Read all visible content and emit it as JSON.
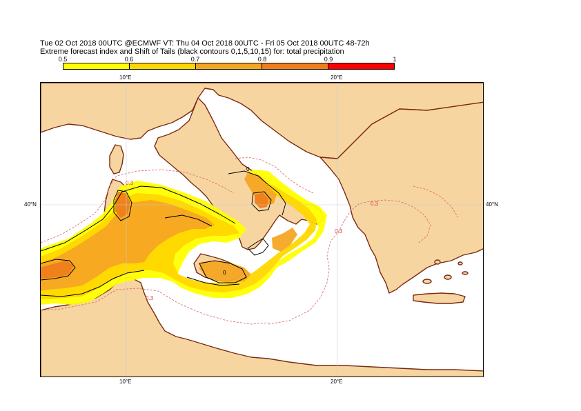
{
  "header": {
    "line1": "Tue 02 Oct 2018 00UTC @ECMWF VT: Thu 04 Oct 2018 00UTC - Fri 05 Oct 2018 00UTC  48-72h",
    "line2": "Extreme forecast index and Shift of Tails (black contours 0,1,5,10,15) for: total precipitation"
  },
  "colorbar": {
    "labels": [
      "0.5",
      "0.6",
      "0.7",
      "0.8",
      "0.9",
      "1"
    ],
    "colors": [
      "#ffff00",
      "#ffd700",
      "#f5a623",
      "#ee7d1a",
      "#ff0000"
    ]
  },
  "map": {
    "colors": {
      "land": "#f6d5a1",
      "sea": "#ffffff",
      "coast": "#7a2a10",
      "shift_of_tails": "#000000",
      "efi_dashed": "#e07070"
    },
    "top_ticks": [
      "10°E",
      "20°E"
    ],
    "bottom_ticks": [
      "10°E",
      "20°E"
    ],
    "left_tick": "40°N",
    "right_tick": "40°N",
    "contour_labels": [
      "0.3",
      "0.3",
      "0.3",
      "0.3",
      "0",
      "0"
    ]
  }
}
